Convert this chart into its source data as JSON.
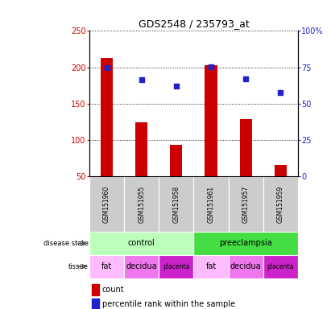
{
  "title": "GDS2548 / 235793_at",
  "samples": [
    "GSM151960",
    "GSM151955",
    "GSM151958",
    "GSM151961",
    "GSM151957",
    "GSM151959"
  ],
  "bar_values": [
    213,
    124,
    93,
    203,
    129,
    65
  ],
  "dot_values_left_axis": [
    200,
    183,
    174,
    201,
    184,
    165
  ],
  "dot_percentiles": [
    75,
    68,
    65,
    75,
    68,
    62
  ],
  "bar_color": "#cc0000",
  "dot_color": "#2222cc",
  "ylim_left": [
    50,
    250
  ],
  "ylim_right": [
    0,
    100
  ],
  "yticks_left": [
    50,
    100,
    150,
    200,
    250
  ],
  "yticks_right": [
    0,
    25,
    50,
    75,
    100
  ],
  "ytick_labels_right": [
    "0",
    "25",
    "50",
    "75",
    "100%"
  ],
  "bar_bg": "#cccccc",
  "disease_ctrl_color": "#bbffbb",
  "disease_pre_color": "#44dd44",
  "tissue_fat_color": "#ffaaff",
  "tissue_decidua_color": "#ee66ee",
  "tissue_placenta_color": "#cc22cc",
  "legend_count_color": "#cc0000",
  "legend_dot_color": "#2222cc"
}
